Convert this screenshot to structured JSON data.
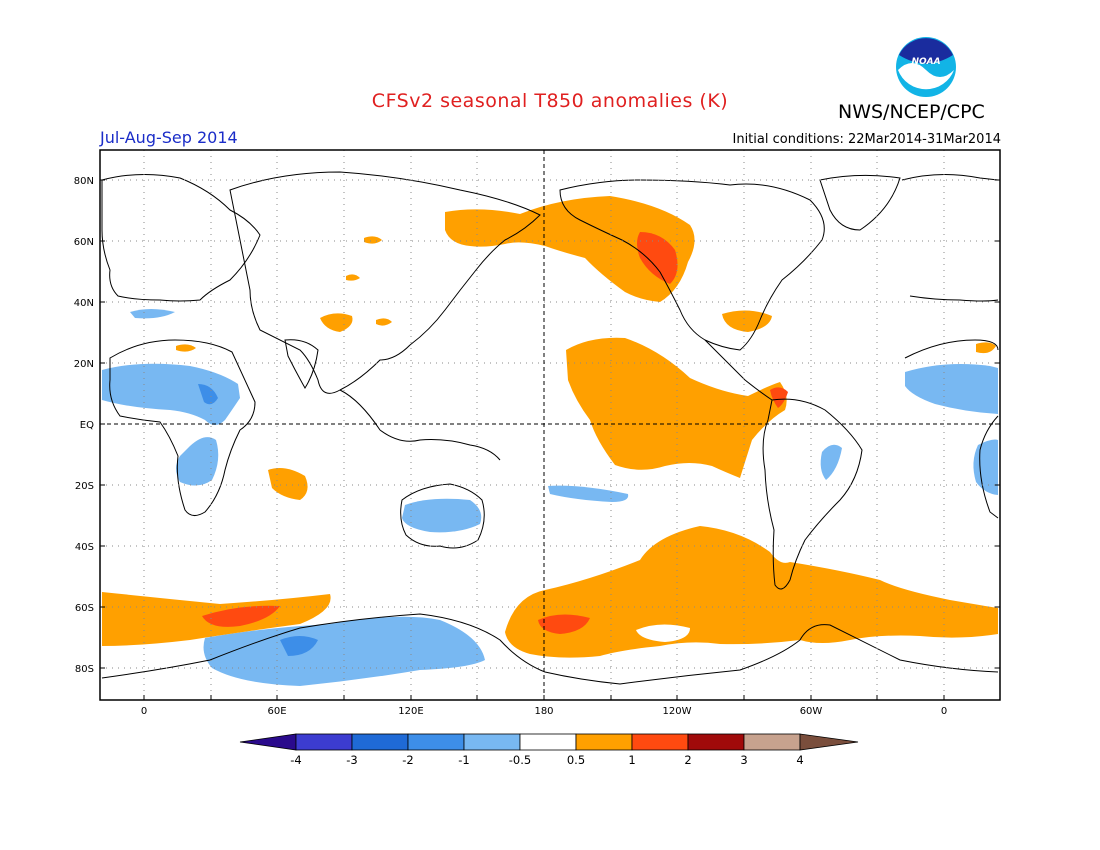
{
  "header": {
    "title": "CFSv2 seasonal T850 anomalies (K)",
    "organization": "NWS/NCEP/CPC",
    "logo_text": "NOAA",
    "period": "Jul-Aug-Sep 2014",
    "initial_conditions": "Initial conditions: 22Mar2014-31Mar2014"
  },
  "map": {
    "lat_labels": [
      "80N",
      "60N",
      "40N",
      "20N",
      "EQ",
      "20S",
      "40S",
      "60S",
      "80S"
    ],
    "lon_labels": [
      "0",
      "60E",
      "120E",
      "180",
      "120W",
      "60W",
      "0"
    ],
    "colors": {
      "land_outline": "#000000",
      "grid": "#777777",
      "background": "#ffffff"
    }
  },
  "colorbar": {
    "labels": [
      "-4",
      "-3",
      "-2",
      "-1",
      "-0.5",
      "0.5",
      "1",
      "2",
      "3",
      "4"
    ],
    "colors": [
      "#2a0a8c",
      "#3c3cd0",
      "#1f6ad6",
      "#3d8ee8",
      "#78b8f2",
      "#ffffff",
      "#ffa000",
      "#ff4a10",
      "#a00a0a",
      "#c7a28e",
      "#7a4e3c"
    ]
  }
}
